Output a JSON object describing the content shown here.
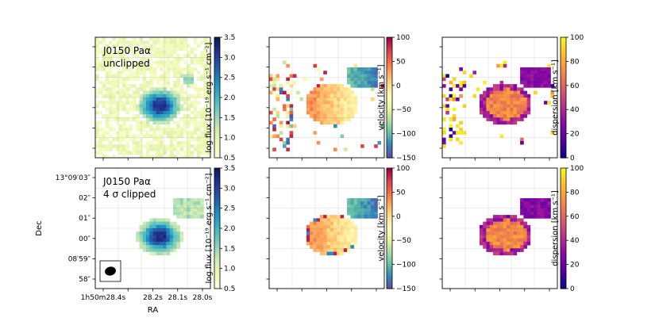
{
  "chart_data": [
    {
      "type": "heatmap",
      "panel": "flux-unclipped",
      "annotation": [
        "J0150 Paα",
        "unclipped"
      ],
      "colormap": "YlGnBu",
      "colorbar_label": "log flux [10⁻¹⁹ erg s⁻¹ cm⁻²]",
      "colorbar_range": [
        0.5,
        3.5
      ],
      "colorbar_ticks": [
        "0.5",
        "1.0",
        "1.5",
        "2.0",
        "2.5",
        "3.0",
        "3.5"
      ],
      "peak_value": 3.3,
      "grid": true
    },
    {
      "type": "heatmap",
      "panel": "velocity-unclipped",
      "colormap": "Spectral_r",
      "colorbar_label": "velocity [km s⁻¹]",
      "colorbar_range": [
        -150,
        100
      ],
      "colorbar_ticks": [
        "100",
        "50",
        "0",
        "−50",
        "−100",
        "−150"
      ],
      "grid": true
    },
    {
      "type": "heatmap",
      "panel": "dispersion-unclipped",
      "colormap": "plasma",
      "colorbar_label": "dispersion [km s⁻¹]",
      "colorbar_range": [
        0,
        100
      ],
      "colorbar_ticks": [
        "100",
        "80",
        "60",
        "40",
        "20",
        "0"
      ],
      "grid": true
    },
    {
      "type": "heatmap",
      "panel": "flux-clipped",
      "annotation": [
        "J0150 Paα",
        "4 σ clipped"
      ],
      "colormap": "YlGnBu",
      "colorbar_label": "log flux [10⁻¹⁹ erg s⁻¹ cm⁻²]",
      "colorbar_range": [
        0.5,
        3.5
      ],
      "colorbar_ticks": [
        "0.5",
        "1.0",
        "1.5",
        "2.0",
        "2.5",
        "3.0",
        "3.5"
      ],
      "xlabel": "RA",
      "ylabel": "Dec",
      "x_tick_labels": [
        "1h50m28.4s",
        "28.2s",
        "28.1s",
        "28.0s"
      ],
      "y_tick_labels": [
        "13°09′03″",
        "02″",
        "01″",
        "00″",
        "08′59″",
        "58″"
      ],
      "grid": true
    },
    {
      "type": "heatmap",
      "panel": "velocity-clipped",
      "colormap": "Spectral_r",
      "colorbar_label": "velocity [km s⁻¹]",
      "colorbar_range": [
        -150,
        100
      ],
      "colorbar_ticks": [
        "100",
        "50",
        "0",
        "−50",
        "−100",
        "−150"
      ],
      "grid": true
    },
    {
      "type": "heatmap",
      "panel": "dispersion-clipped",
      "colormap": "plasma",
      "colorbar_label": "dispersion [km s⁻¹]",
      "colorbar_range": [
        0,
        100
      ],
      "colorbar_ticks": [
        "100",
        "80",
        "60",
        "40",
        "20",
        "0"
      ],
      "grid": true
    }
  ]
}
